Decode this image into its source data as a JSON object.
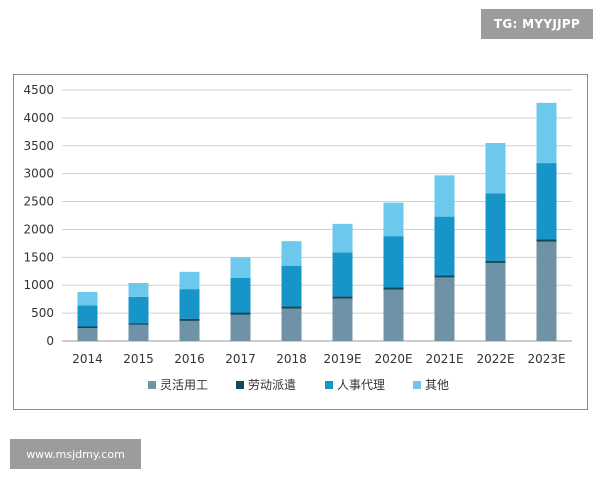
{
  "watermarks": {
    "top": "TG: MYYJJPP",
    "bottom": "www.msjdmy.com"
  },
  "chart_data": {
    "type": "bar",
    "stacked": true,
    "categories": [
      "2014",
      "2015",
      "2016",
      "2017",
      "2018",
      "2019E",
      "2020E",
      "2021E",
      "2022E",
      "2023E"
    ],
    "series": [
      {
        "name": "灵活用工",
        "color": "#6f92a7",
        "values": [
          230,
          290,
          360,
          470,
          580,
          760,
          920,
          1140,
          1400,
          1780
        ]
      },
      {
        "name": "劳动派遣",
        "color": "#0d4a5e",
        "values": [
          30,
          30,
          40,
          40,
          40,
          40,
          40,
          40,
          40,
          40
        ]
      },
      {
        "name": "人事代理",
        "color": "#1795c9",
        "values": [
          380,
          470,
          530,
          620,
          730,
          790,
          920,
          1050,
          1210,
          1370
        ]
      },
      {
        "name": "其他",
        "color": "#6cc9ec",
        "values": [
          240,
          250,
          310,
          370,
          440,
          510,
          600,
          740,
          900,
          1080
        ]
      }
    ],
    "ylim": [
      0,
      4500
    ],
    "yticks": [
      0,
      500,
      1000,
      1500,
      2000,
      2500,
      3000,
      3500,
      4000,
      4500
    ],
    "grid": true,
    "legend": "bottom"
  }
}
